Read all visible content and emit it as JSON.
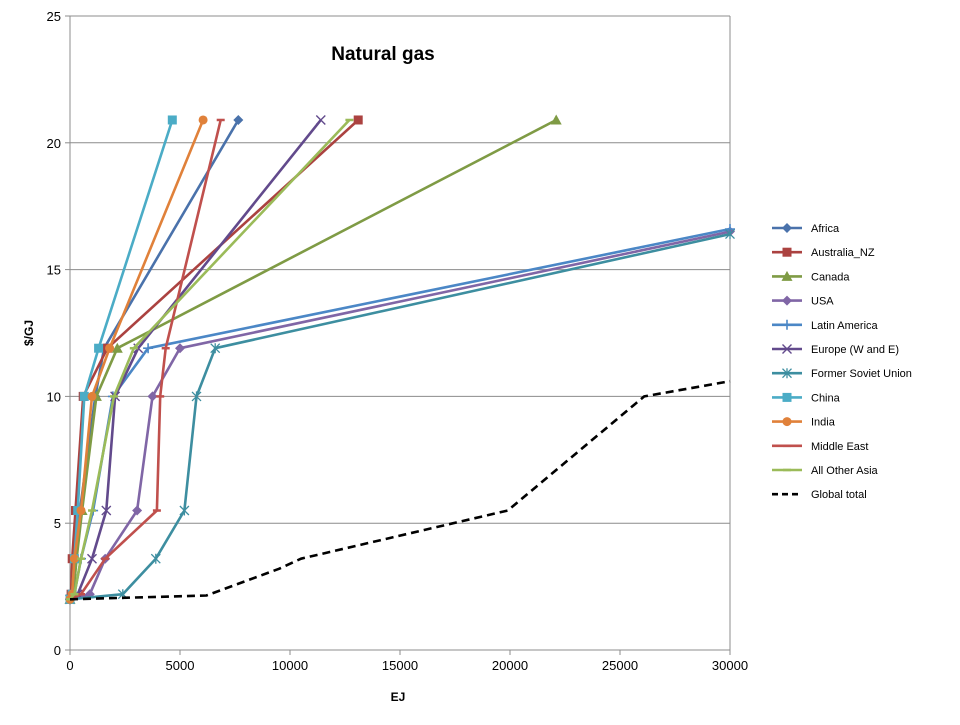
{
  "chart_data": {
    "type": "line",
    "title": "Natural gas",
    "xlabel": "EJ",
    "ylabel": "$/GJ",
    "xlim": [
      0,
      30000
    ],
    "ylim": [
      0,
      25
    ],
    "xticks": [
      0,
      5000,
      10000,
      15000,
      20000,
      25000,
      30000
    ],
    "yticks": [
      0,
      5,
      10,
      15,
      20,
      25
    ],
    "grid": "horizontal",
    "legend_position": "right",
    "series": [
      {
        "name": "Africa",
        "color": "#4a72ab",
        "marker": "diamond",
        "dash": "",
        "points": [
          [
            0,
            2
          ],
          [
            100,
            2.2
          ],
          [
            200,
            3.6
          ],
          [
            450,
            5.5
          ],
          [
            1150,
            10
          ],
          [
            1550,
            11.9
          ],
          [
            7650,
            20.9
          ]
        ]
      },
      {
        "name": "Australia_NZ",
        "color": "#ab4240",
        "marker": "square",
        "dash": "",
        "points": [
          [
            0,
            2
          ],
          [
            50,
            2.2
          ],
          [
            100,
            3.6
          ],
          [
            250,
            5.5
          ],
          [
            600,
            10
          ],
          [
            1700,
            11.9
          ],
          [
            13100,
            20.9
          ]
        ]
      },
      {
        "name": "Canada",
        "color": "#7f9b45",
        "marker": "triangle",
        "dash": "",
        "points": [
          [
            0,
            2
          ],
          [
            150,
            2.2
          ],
          [
            300,
            3.6
          ],
          [
            550,
            5.5
          ],
          [
            1200,
            10
          ],
          [
            2150,
            11.9
          ],
          [
            22100,
            20.9
          ]
        ]
      },
      {
        "name": "USA",
        "color": "#8066a6",
        "marker": "diamond",
        "dash": "",
        "points": [
          [
            0,
            2
          ],
          [
            900,
            2.2
          ],
          [
            1600,
            3.6
          ],
          [
            3050,
            5.5
          ],
          [
            3750,
            10
          ],
          [
            5000,
            11.9
          ],
          [
            30000,
            16.5
          ]
        ]
      },
      {
        "name": "Latin America",
        "color": "#4b87c6",
        "marker": "plus",
        "dash": "",
        "points": [
          [
            0,
            2
          ],
          [
            200,
            2.2
          ],
          [
            500,
            3.6
          ],
          [
            1050,
            5.5
          ],
          [
            1950,
            10
          ],
          [
            3550,
            11.9
          ],
          [
            30000,
            16.6
          ]
        ]
      },
      {
        "name": "Europe (W and E)",
        "color": "#624a8c",
        "marker": "x",
        "dash": "",
        "points": [
          [
            0,
            2
          ],
          [
            350,
            2.2
          ],
          [
            1000,
            3.6
          ],
          [
            1650,
            5.5
          ],
          [
            2050,
            10
          ],
          [
            3100,
            11.9
          ],
          [
            11400,
            20.9
          ]
        ]
      },
      {
        "name": "Former Soviet Union",
        "color": "#3d8ea0",
        "marker": "asterisk",
        "dash": "",
        "points": [
          [
            0,
            2
          ],
          [
            2400,
            2.2
          ],
          [
            3900,
            3.6
          ],
          [
            5200,
            5.5
          ],
          [
            5750,
            10
          ],
          [
            6600,
            11.9
          ],
          [
            30000,
            16.4
          ]
        ]
      },
      {
        "name": "China",
        "color": "#4bacc6",
        "marker": "square",
        "dash": "",
        "points": [
          [
            0,
            2
          ],
          [
            100,
            2.2
          ],
          [
            200,
            3.6
          ],
          [
            350,
            5.5
          ],
          [
            650,
            10
          ],
          [
            1300,
            11.9
          ],
          [
            4650,
            20.9
          ]
        ]
      },
      {
        "name": "India",
        "color": "#e0813a",
        "marker": "circle",
        "dash": "",
        "points": [
          [
            0,
            2
          ],
          [
            100,
            2.2
          ],
          [
            200,
            3.6
          ],
          [
            500,
            5.5
          ],
          [
            1000,
            10
          ],
          [
            1800,
            11.9
          ],
          [
            6050,
            20.9
          ]
        ]
      },
      {
        "name": "Middle East",
        "color": "#c0504d",
        "marker": "dash",
        "dash": "",
        "points": [
          [
            0,
            2
          ],
          [
            500,
            2.2
          ],
          [
            1600,
            3.6
          ],
          [
            3950,
            5.5
          ],
          [
            4100,
            10
          ],
          [
            4350,
            11.9
          ],
          [
            6850,
            20.9
          ]
        ]
      },
      {
        "name": "All Other Asia",
        "color": "#9bbb59",
        "marker": "dash",
        "dash": "",
        "points": [
          [
            0,
            2
          ],
          [
            200,
            2.2
          ],
          [
            500,
            3.6
          ],
          [
            1000,
            5.5
          ],
          [
            2000,
            10
          ],
          [
            2900,
            11.9
          ],
          [
            12700,
            20.9
          ]
        ]
      },
      {
        "name": "Global total",
        "color": "#000000",
        "marker": "none",
        "dash": "8,5",
        "points": [
          [
            0,
            2
          ],
          [
            6200,
            2.15
          ],
          [
            9500,
            3.2
          ],
          [
            10500,
            3.6
          ],
          [
            19900,
            5.5
          ],
          [
            26100,
            10
          ],
          [
            30000,
            10.6
          ]
        ]
      }
    ]
  }
}
